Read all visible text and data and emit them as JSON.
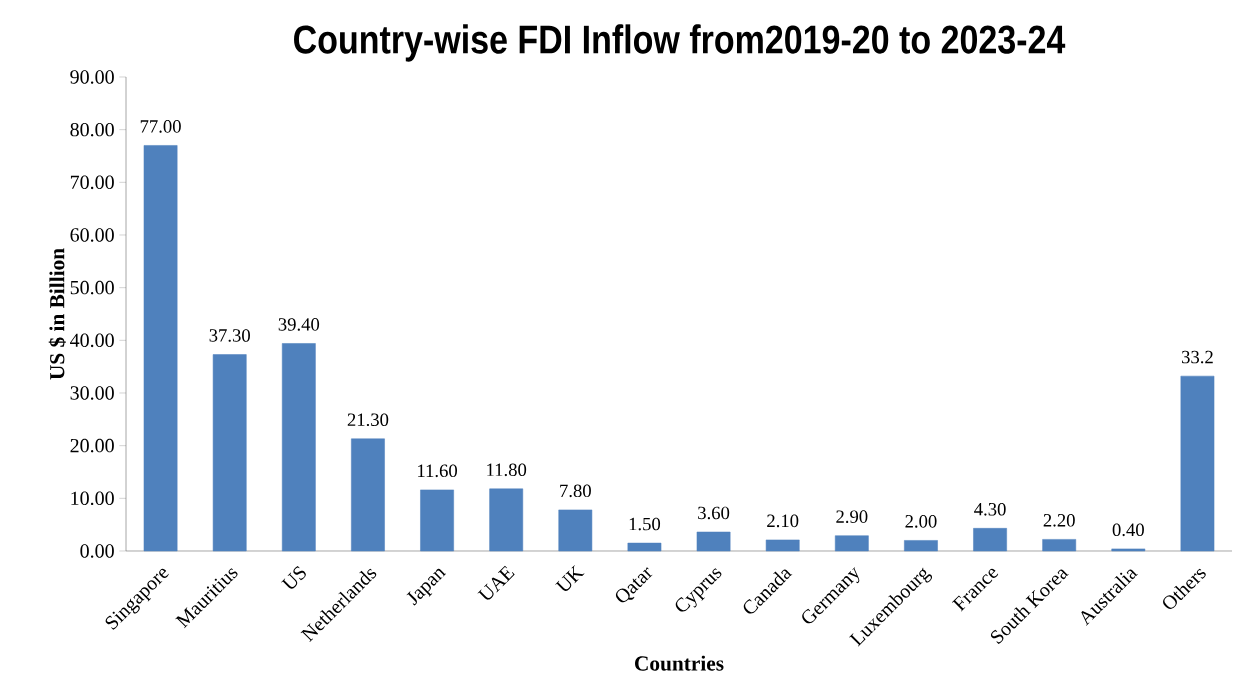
{
  "chart_data": {
    "type": "bar",
    "title": "Country-wise FDI Inflow from2019-20 to 2023-24",
    "xlabel": "Countries",
    "ylabel": "US $ in Billion",
    "categories": [
      "Singapore",
      "Mauritius",
      "US",
      "Netherlands",
      "Japan",
      "UAE",
      "UK",
      "Qatar",
      "Cyprus",
      "Canada",
      "Germany",
      "Luxembourg",
      "France",
      "South Korea",
      "Australia",
      "Others"
    ],
    "values": [
      77.0,
      37.3,
      39.4,
      21.3,
      11.6,
      11.8,
      7.8,
      1.5,
      3.6,
      2.1,
      2.9,
      2.0,
      4.3,
      2.2,
      0.4,
      33.2
    ],
    "value_labels": [
      "77.00",
      "37.30",
      "39.40",
      "21.30",
      "11.60",
      "11.80",
      "7.80",
      "1.50",
      "3.60",
      "2.10",
      "2.90",
      "2.00",
      "4.30",
      "2.20",
      "0.40",
      "33.2"
    ],
    "color": "#4f81bd",
    "ylim": [
      0,
      90
    ],
    "yticks": [
      {
        "value": 0,
        "label": "0.00"
      },
      {
        "value": 10,
        "label": "10.00"
      },
      {
        "value": 20,
        "label": "20.00"
      },
      {
        "value": 30,
        "label": "30.00"
      },
      {
        "value": 40,
        "label": "40.00"
      },
      {
        "value": 50,
        "label": "50.00"
      },
      {
        "value": 60,
        "label": "60.00"
      },
      {
        "value": 70,
        "label": "70.00"
      },
      {
        "value": 80,
        "label": "80.00"
      },
      {
        "value": 90,
        "label": "90.00"
      }
    ]
  }
}
